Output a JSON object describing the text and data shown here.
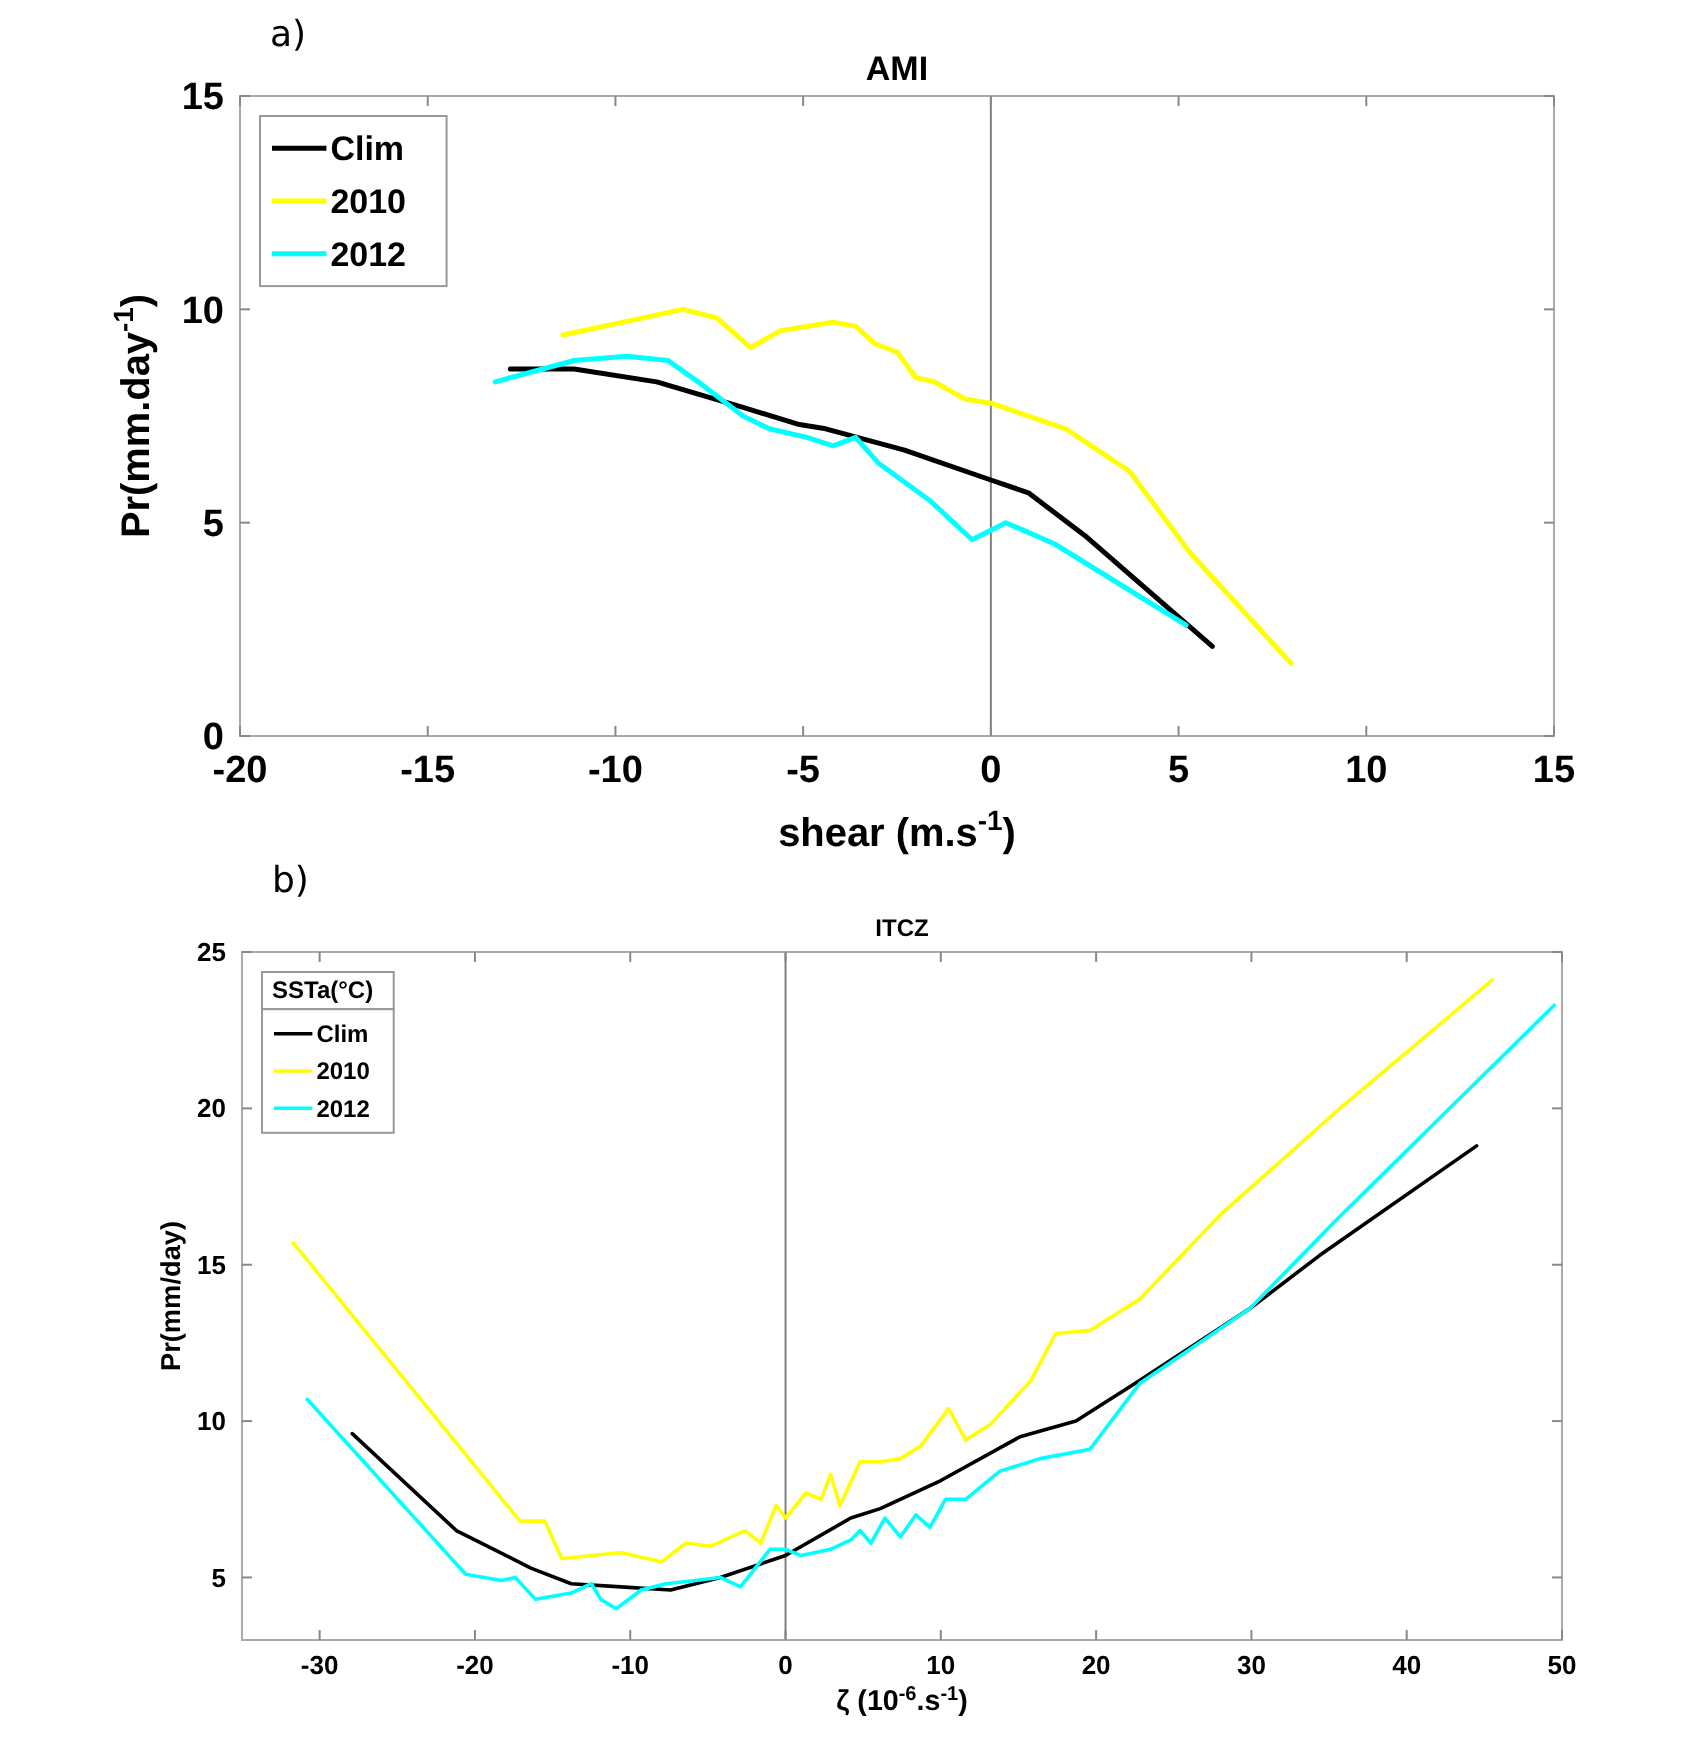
{
  "chart_data": [
    {
      "type": "line",
      "title": "AMI",
      "xlabel": "shear (m.s$^{-1}$)",
      "ylabel": "Pr(mm.day$^{-1}$)",
      "annotations": [
        "a)"
      ],
      "xlim": [
        -20,
        15
      ],
      "xticks": [
        -20,
        -15,
        -10,
        -5,
        0,
        5,
        10,
        15
      ],
      "ylim": [
        0,
        15
      ],
      "yticks": [
        0,
        5,
        10,
        15
      ],
      "grid": false,
      "legend": "top left",
      "ref_lines": [
        {
          "axis": "x",
          "value": 0,
          "color": "#808080"
        }
      ],
      "series": [
        {
          "name": "Clim",
          "color": "#000000",
          "x": [
            -12.8,
            -11.1,
            -8.9,
            -6.6,
            -5.1,
            -4.4,
            -2.3,
            0,
            1.0,
            2.5,
            5.9
          ],
          "values": [
            8.6,
            8.6,
            8.3,
            7.7,
            7.3,
            7.2,
            6.7,
            6.0,
            5.7,
            4.7,
            2.1
          ]
        },
        {
          "name": "2010",
          "color": "#ffff00",
          "x": [
            -11.4,
            -8.2,
            -7.3,
            -6.4,
            -5.6,
            -4.2,
            -3.6,
            -3.1,
            -2.5,
            -2.0,
            -1.5,
            -0.7,
            0,
            2.0,
            3.7,
            5.3,
            8.0
          ],
          "values": [
            9.4,
            10.0,
            9.8,
            9.1,
            9.5,
            9.7,
            9.6,
            9.2,
            9.0,
            8.4,
            8.3,
            7.9,
            7.8,
            7.2,
            6.2,
            4.3,
            1.7
          ]
        },
        {
          "name": "2012",
          "color": "#00ffff",
          "x": [
            -13.2,
            -11.1,
            -9.7,
            -8.6,
            -7.8,
            -6.6,
            -5.9,
            -4.9,
            -4.2,
            -3.6,
            -3.0,
            -1.6,
            -0.5,
            0.4,
            1.7,
            5.2
          ],
          "values": [
            8.3,
            8.8,
            8.9,
            8.8,
            8.3,
            7.5,
            7.2,
            7.0,
            6.8,
            7.0,
            6.4,
            5.5,
            4.6,
            5.0,
            4.5,
            2.6
          ]
        }
      ]
    },
    {
      "type": "line",
      "title": "ITCZ",
      "xlabel": "ζ (10$^{-6}$.s$^{-1}$)",
      "ylabel": "Pr(mm/day)",
      "legend_title": "SSTa(°C)",
      "annotations": [
        "b)"
      ],
      "xlim": [
        -35,
        50
      ],
      "xticks": [
        -30,
        -20,
        -10,
        0,
        10,
        20,
        30,
        40,
        50
      ],
      "ylim": [
        3,
        25
      ],
      "yticks": [
        5,
        10,
        15,
        20,
        25
      ],
      "grid": false,
      "legend": "top left",
      "ref_lines": [
        {
          "axis": "x",
          "value": 0,
          "color": "#808080"
        }
      ],
      "series": [
        {
          "name": "Clim",
          "color": "#000000",
          "x": [
            -27.9,
            -21.2,
            -16.4,
            -13.8,
            -10.6,
            -7.4,
            -4.2,
            0,
            4.2,
            6.1,
            10.0,
            15.1,
            18.7,
            22.8,
            29.9,
            34.4,
            44.5
          ],
          "values": [
            9.6,
            6.5,
            5.3,
            4.8,
            4.7,
            4.6,
            5.0,
            5.7,
            6.9,
            7.2,
            8.1,
            9.5,
            10.0,
            11.3,
            13.6,
            15.3,
            18.8
          ]
        },
        {
          "name": "2010",
          "color": "#ffff00",
          "x": [
            -31.7,
            -17.1,
            -15.5,
            -14.4,
            -10.6,
            -8.0,
            -6.4,
            -4.8,
            -2.6,
            -1.6,
            -0.6,
            0,
            1.3,
            2.3,
            2.9,
            3.5,
            4.8,
            6.1,
            7.4,
            8.7,
            10.5,
            11.6,
            13.2,
            15.8,
            17.4,
            19.6,
            22.8,
            28.0,
            35.7,
            45.5
          ],
          "values": [
            15.7,
            6.8,
            6.8,
            5.6,
            5.8,
            5.5,
            6.1,
            6.0,
            6.5,
            6.1,
            7.3,
            6.9,
            7.7,
            7.5,
            8.3,
            7.3,
            8.7,
            8.7,
            8.8,
            9.2,
            10.4,
            9.4,
            9.9,
            11.3,
            12.8,
            12.9,
            13.9,
            16.6,
            20.0,
            24.1
          ]
        },
        {
          "name": "2012",
          "color": "#00ffff",
          "x": [
            -30.8,
            -20.6,
            -18.3,
            -17.4,
            -16.1,
            -13.8,
            -12.5,
            -11.9,
            -10.9,
            -9.3,
            -7.7,
            -5.8,
            -4.2,
            -2.9,
            -1.0,
            0,
            1.0,
            2.9,
            4.2,
            4.8,
            5.5,
            6.4,
            7.4,
            8.4,
            9.3,
            10.3,
            11.6,
            13.8,
            16.4,
            19.6,
            22.8,
            29.9,
            35.4,
            49.5
          ],
          "values": [
            10.7,
            5.1,
            4.9,
            5.0,
            4.3,
            4.5,
            4.8,
            4.3,
            4.0,
            4.6,
            4.8,
            4.9,
            5.0,
            4.7,
            5.9,
            5.9,
            5.7,
            5.9,
            6.2,
            6.5,
            6.1,
            6.9,
            6.3,
            7.0,
            6.6,
            7.5,
            7.5,
            8.4,
            8.8,
            9.1,
            11.2,
            13.6,
            16.4,
            23.3
          ]
        }
      ]
    }
  ]
}
